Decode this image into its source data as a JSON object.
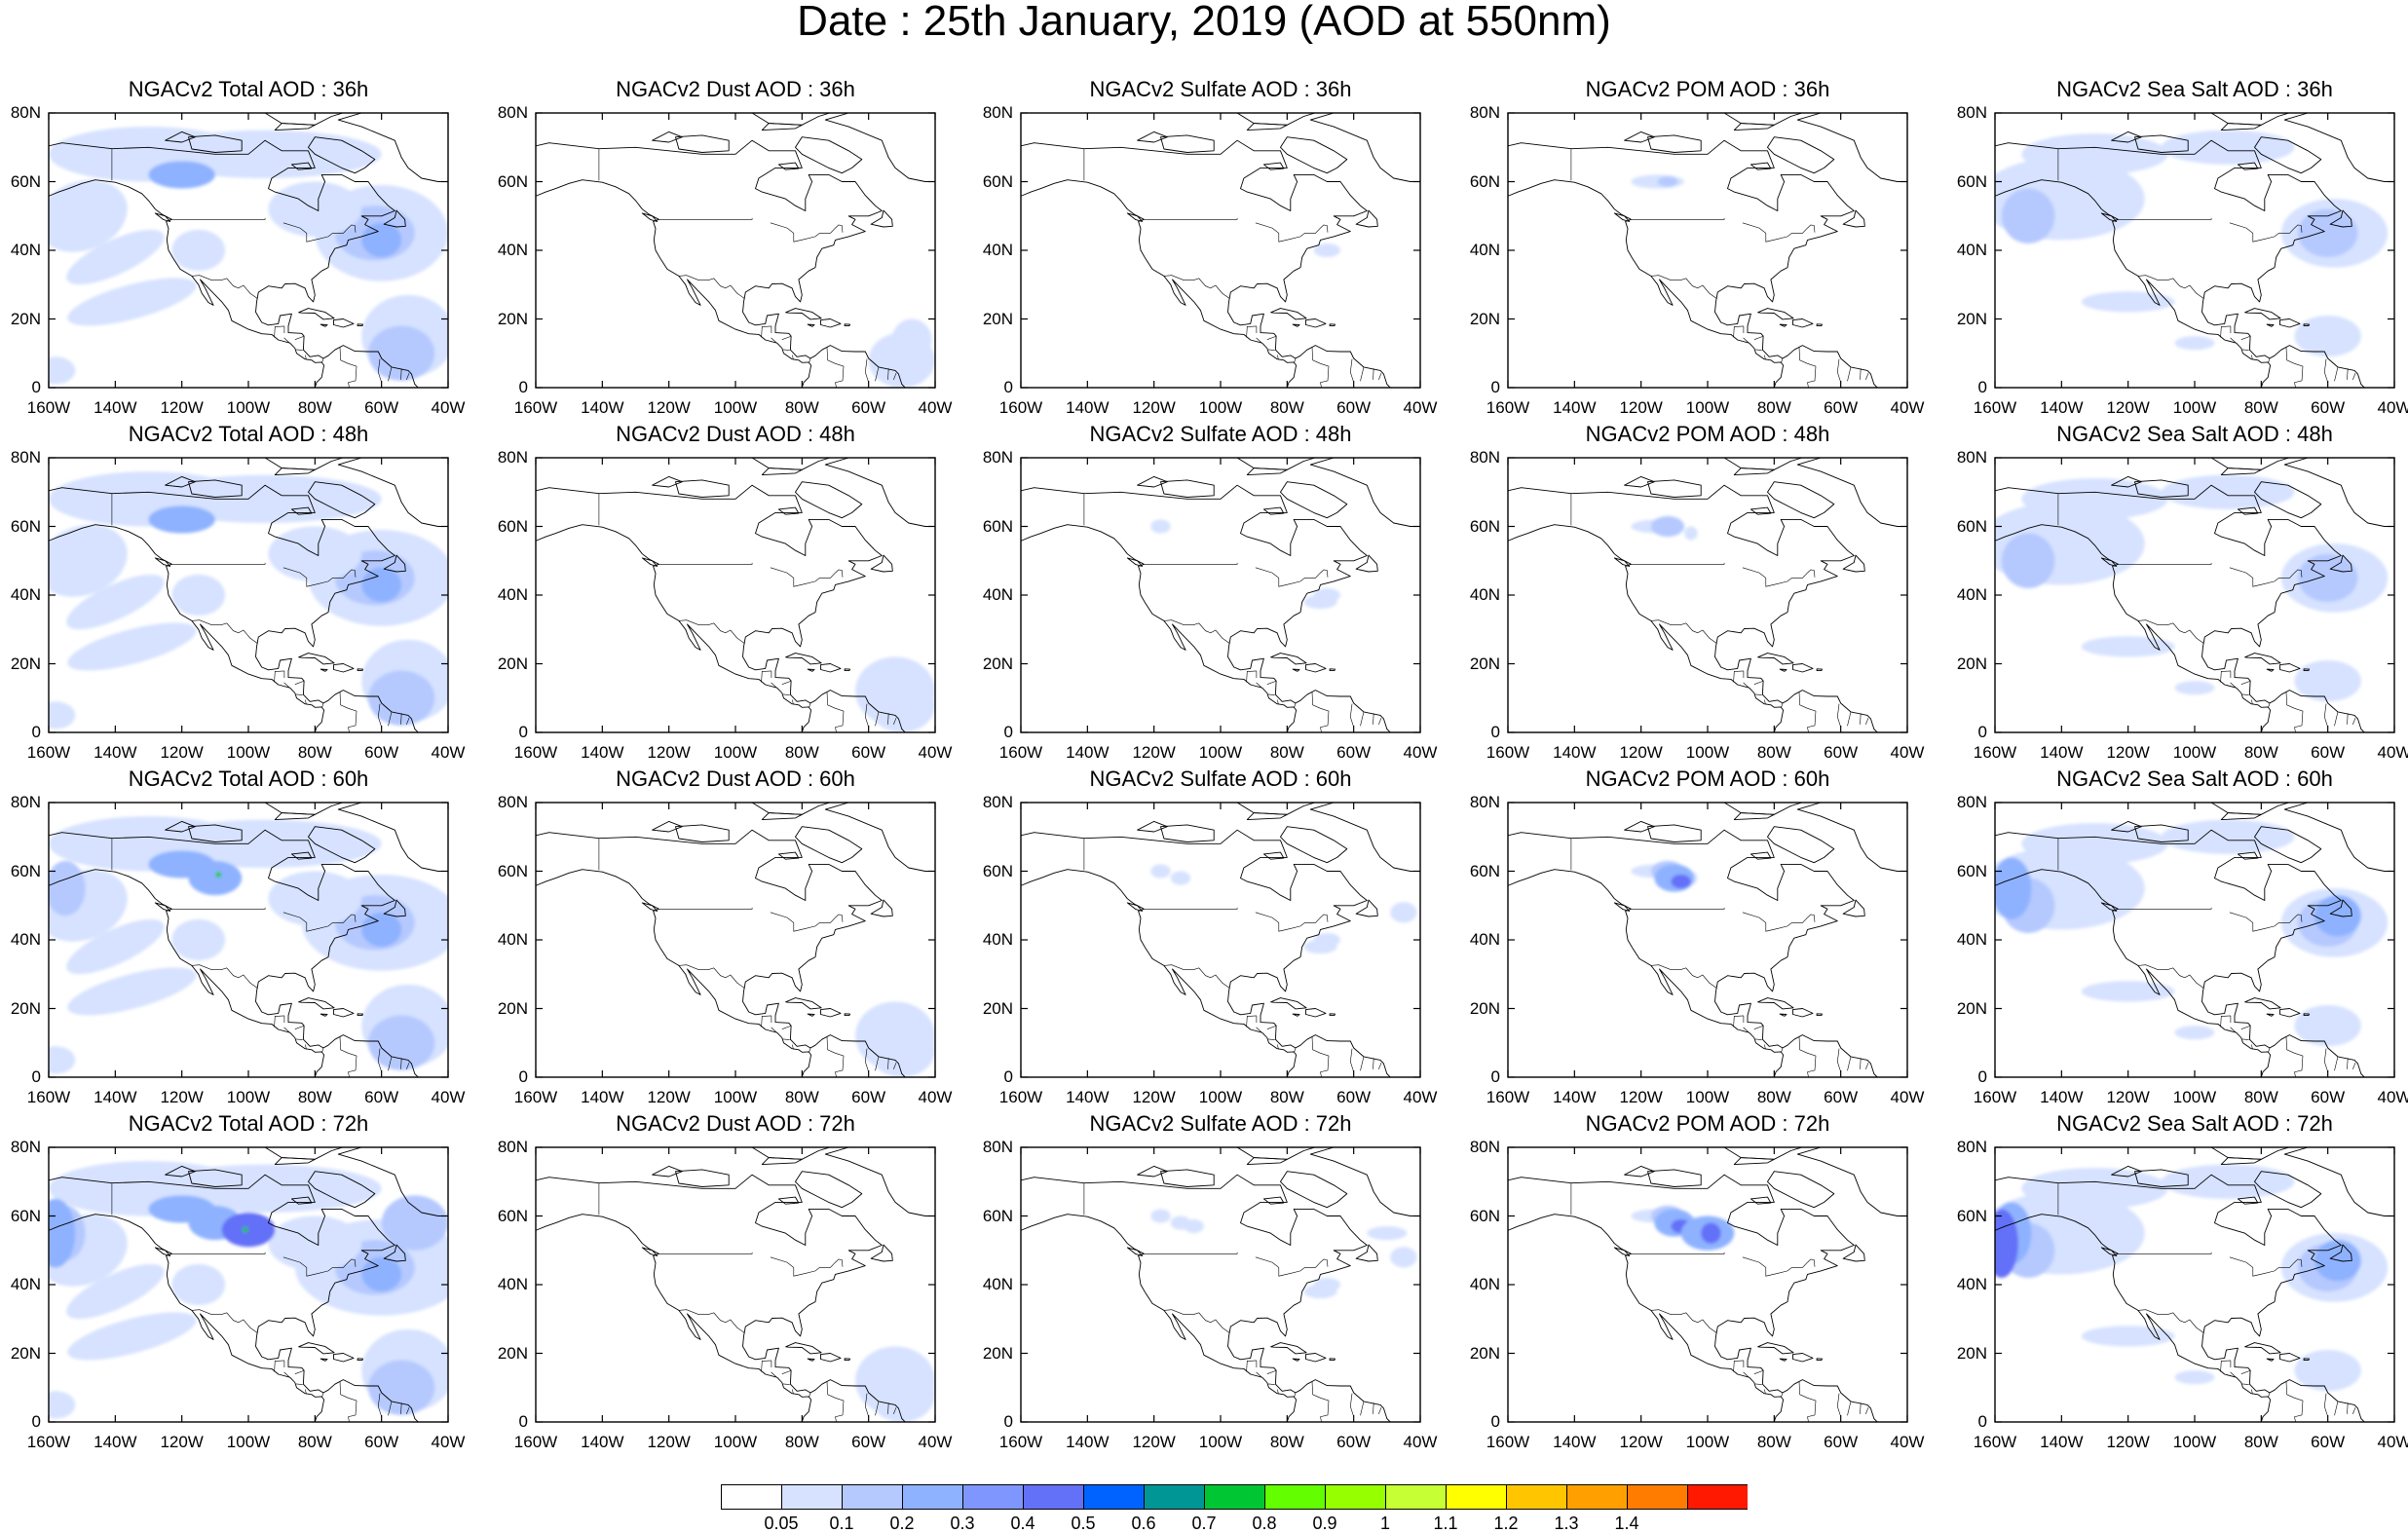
{
  "title": "Date : 25th January, 2019 (AOD at 550nm)",
  "map": {
    "lat_labels": [
      "80N",
      "60N",
      "40N",
      "20N",
      "0"
    ],
    "lon_labels": [
      "160W",
      "140W",
      "120W",
      "100W",
      "80W",
      "60W",
      "40W"
    ],
    "lat_range": [
      0,
      80
    ],
    "lon_range": [
      -160,
      -40
    ]
  },
  "panels": [
    {
      "title": "NGACv2 Total AOD : 36h",
      "species": "total",
      "hour": 36
    },
    {
      "title": "NGACv2 Dust AOD : 36h",
      "species": "dust",
      "hour": 36
    },
    {
      "title": "NGACv2 Sulfate AOD : 36h",
      "species": "sulfate",
      "hour": 36
    },
    {
      "title": "NGACv2 POM AOD : 36h",
      "species": "pom",
      "hour": 36
    },
    {
      "title": "NGACv2 Sea Salt AOD : 36h",
      "species": "seasalt",
      "hour": 36
    },
    {
      "title": "NGACv2 Total AOD : 48h",
      "species": "total",
      "hour": 48
    },
    {
      "title": "NGACv2 Dust AOD : 48h",
      "species": "dust",
      "hour": 48
    },
    {
      "title": "NGACv2 Sulfate AOD : 48h",
      "species": "sulfate",
      "hour": 48
    },
    {
      "title": "NGACv2 POM AOD : 48h",
      "species": "pom",
      "hour": 48
    },
    {
      "title": "NGACv2 Sea Salt AOD : 48h",
      "species": "seasalt",
      "hour": 48
    },
    {
      "title": "NGACv2 Total AOD : 60h",
      "species": "total",
      "hour": 60
    },
    {
      "title": "NGACv2 Dust AOD : 60h",
      "species": "dust",
      "hour": 60
    },
    {
      "title": "NGACv2 Sulfate AOD : 60h",
      "species": "sulfate",
      "hour": 60
    },
    {
      "title": "NGACv2 POM AOD : 60h",
      "species": "pom",
      "hour": 60
    },
    {
      "title": "NGACv2 Sea Salt AOD : 60h",
      "species": "seasalt",
      "hour": 60
    },
    {
      "title": "NGACv2 Total AOD : 72h",
      "species": "total",
      "hour": 72
    },
    {
      "title": "NGACv2 Dust AOD : 72h",
      "species": "dust",
      "hour": 72
    },
    {
      "title": "NGACv2 Sulfate AOD : 72h",
      "species": "sulfate",
      "hour": 72
    },
    {
      "title": "NGACv2 POM AOD : 72h",
      "species": "pom",
      "hour": 72
    },
    {
      "title": "NGACv2 Sea Salt  AOD : 72h",
      "species": "seasalt",
      "hour": 72
    }
  ],
  "colorbar": {
    "labels": [
      "0.05",
      "0.1",
      "0.2",
      "0.3",
      "0.4",
      "0.5",
      "0.6",
      "0.7",
      "0.8",
      "0.9",
      "1",
      "1.1",
      "1.2",
      "1.3",
      "1.4"
    ],
    "colors": [
      "#ffffff",
      "#d6e2ff",
      "#b5c9ff",
      "#8eb2ff",
      "#7f96ff",
      "#6370f8",
      "#0063ff",
      "#009696",
      "#00c633",
      "#63ff00",
      "#96ff00",
      "#c6ff33",
      "#ffff00",
      "#ffc600",
      "#ffa000",
      "#ff7c00",
      "#ff1900"
    ]
  },
  "colors": {
    "coastline": "#000000",
    "aod_low": "#d6e2ff",
    "aod_mid": "#b5c9ff",
    "aod_high": "#8eb2ff",
    "aod_peak": "#6370f8",
    "fire_core": "#00c633"
  }
}
